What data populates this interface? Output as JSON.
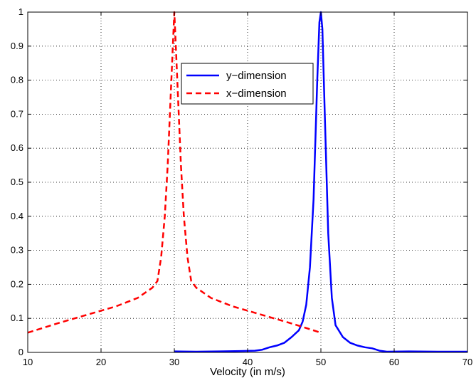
{
  "chart_data": {
    "type": "line",
    "title": "",
    "xlabel": "Velocity (in m/s)",
    "ylabel": "",
    "xlim": [
      10,
      70
    ],
    "ylim": [
      0,
      1
    ],
    "grid": true,
    "legend_position": "top-center",
    "x_ticks": [
      "10",
      "20",
      "30",
      "40",
      "50",
      "60",
      "70"
    ],
    "y_ticks": [
      "0",
      "0.1",
      "0.2",
      "0.3",
      "0.4",
      "0.5",
      "0.6",
      "0.7",
      "0.8",
      "0.9",
      "1"
    ],
    "series": [
      {
        "name": "y−dimension",
        "color": "#0000ff",
        "style": "solid",
        "points": [
          [
            30,
            0.003
          ],
          [
            33,
            0.002
          ],
          [
            36,
            0.003
          ],
          [
            39,
            0.004
          ],
          [
            41,
            0.005
          ],
          [
            42,
            0.008
          ],
          [
            43,
            0.015
          ],
          [
            44,
            0.02
          ],
          [
            45,
            0.028
          ],
          [
            46,
            0.045
          ],
          [
            47,
            0.065
          ],
          [
            47.5,
            0.09
          ],
          [
            48,
            0.14
          ],
          [
            48.5,
            0.25
          ],
          [
            49,
            0.45
          ],
          [
            49.5,
            0.8
          ],
          [
            49.8,
            0.97
          ],
          [
            50,
            1.0
          ],
          [
            50.2,
            0.95
          ],
          [
            50.5,
            0.72
          ],
          [
            51,
            0.35
          ],
          [
            51.5,
            0.16
          ],
          [
            52,
            0.08
          ],
          [
            53,
            0.045
          ],
          [
            54,
            0.028
          ],
          [
            55,
            0.02
          ],
          [
            56,
            0.015
          ],
          [
            57,
            0.012
          ],
          [
            58,
            0.005
          ],
          [
            59,
            0.002
          ],
          [
            62,
            0.003
          ],
          [
            66,
            0.002
          ],
          [
            70,
            0.002
          ]
        ]
      },
      {
        "name": "x−dimension",
        "color": "#ff0000",
        "style": "dashed",
        "points": [
          [
            10,
            0.058
          ],
          [
            14,
            0.085
          ],
          [
            18,
            0.11
          ],
          [
            22,
            0.135
          ],
          [
            25,
            0.16
          ],
          [
            27,
            0.19
          ],
          [
            27.7,
            0.21
          ],
          [
            28.2,
            0.28
          ],
          [
            28.7,
            0.4
          ],
          [
            29.1,
            0.55
          ],
          [
            29.5,
            0.75
          ],
          [
            29.8,
            0.9
          ],
          [
            30,
            1.0
          ],
          [
            30.2,
            0.9
          ],
          [
            30.5,
            0.75
          ],
          [
            30.9,
            0.55
          ],
          [
            31.3,
            0.4
          ],
          [
            31.8,
            0.28
          ],
          [
            32.3,
            0.21
          ],
          [
            33,
            0.19
          ],
          [
            35,
            0.16
          ],
          [
            38,
            0.135
          ],
          [
            42,
            0.11
          ],
          [
            46,
            0.085
          ],
          [
            50,
            0.058
          ]
        ]
      }
    ]
  }
}
